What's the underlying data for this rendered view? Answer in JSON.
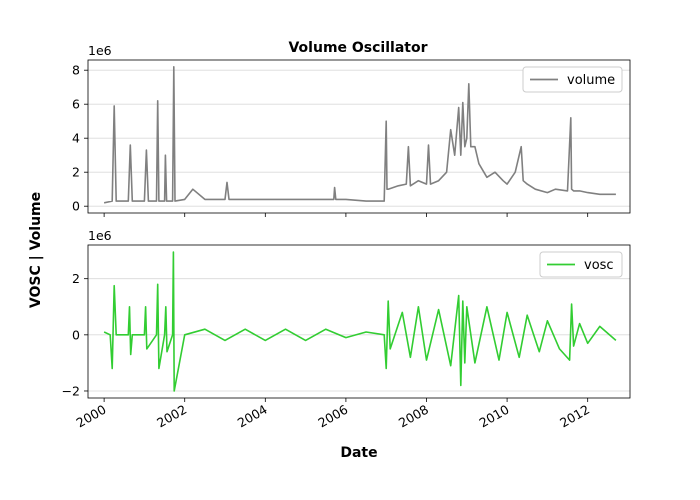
{
  "chart_data": {
    "type": "line",
    "title": "Volume Oscillator",
    "xlabel": "Date",
    "ylabel": "VOSC | Volume",
    "x_ticks": [
      "2000",
      "2002",
      "2004",
      "2006",
      "2008",
      "2010",
      "2012"
    ],
    "x_range": [
      1999.6,
      2013.05
    ],
    "grid": true,
    "panels": [
      {
        "name": "volume",
        "multiplier": "1e6",
        "ylim": [
          -0.4,
          8.6
        ],
        "y_ticks": [
          0,
          2,
          4,
          6,
          8
        ],
        "legend": "top-right",
        "series": [
          {
            "name": "volume",
            "color": "#808080",
            "x": [
              2000.0,
              2000.2,
              2000.25,
              2000.3,
              2000.6,
              2000.65,
              2000.7,
              2001.0,
              2001.05,
              2001.1,
              2001.3,
              2001.33,
              2001.36,
              2001.5,
              2001.52,
              2001.55,
              2001.7,
              2001.73,
              2001.76,
              2002.0,
              2002.2,
              2002.5,
              2003.0,
              2003.05,
              2003.1,
              2003.5,
              2004.0,
              2004.5,
              2005.0,
              2005.5,
              2005.7,
              2005.72,
              2005.75,
              2006.0,
              2006.5,
              2006.95,
              2007.0,
              2007.02,
              2007.05,
              2007.3,
              2007.5,
              2007.55,
              2007.6,
              2007.8,
              2008.0,
              2008.05,
              2008.1,
              2008.3,
              2008.5,
              2008.6,
              2008.7,
              2008.8,
              2008.85,
              2008.9,
              2008.95,
              2009.0,
              2009.05,
              2009.1,
              2009.2,
              2009.3,
              2009.5,
              2009.7,
              2009.9,
              2010.0,
              2010.2,
              2010.35,
              2010.4,
              2010.5,
              2010.7,
              2011.0,
              2011.2,
              2011.5,
              2011.58,
              2011.6,
              2011.65,
              2011.8,
              2012.0,
              2012.3,
              2012.7
            ],
            "values": [
              0.2,
              0.3,
              5.9,
              0.3,
              0.3,
              3.6,
              0.3,
              0.3,
              3.3,
              0.3,
              0.3,
              6.2,
              0.3,
              0.3,
              3.0,
              0.3,
              0.3,
              8.2,
              0.3,
              0.4,
              1.0,
              0.4,
              0.4,
              1.4,
              0.4,
              0.4,
              0.4,
              0.4,
              0.4,
              0.4,
              0.4,
              1.1,
              0.4,
              0.4,
              0.3,
              0.3,
              5.0,
              1.0,
              1.0,
              1.2,
              1.3,
              3.5,
              1.2,
              1.5,
              1.3,
              3.6,
              1.3,
              1.5,
              2.0,
              4.5,
              3.0,
              5.8,
              3.0,
              6.1,
              3.5,
              4.0,
              7.2,
              3.5,
              3.5,
              2.5,
              1.7,
              2.0,
              1.5,
              1.3,
              2.0,
              3.5,
              1.5,
              1.3,
              1.0,
              0.8,
              1.0,
              0.9,
              5.2,
              1.0,
              0.9,
              0.9,
              0.8,
              0.7,
              0.7
            ]
          }
        ]
      },
      {
        "name": "vosc",
        "multiplier": "1e6",
        "ylim": [
          -2.25,
          3.2
        ],
        "y_ticks": [
          -2,
          0,
          2
        ],
        "legend": "top-right",
        "series": [
          {
            "name": "vosc",
            "color": "#32cd32",
            "x": [
              2000.0,
              2000.15,
              2000.2,
              2000.25,
              2000.3,
              2000.6,
              2000.63,
              2000.66,
              2000.7,
              2001.0,
              2001.03,
              2001.06,
              2001.3,
              2001.33,
              2001.36,
              2001.5,
              2001.53,
              2001.56,
              2001.7,
              2001.72,
              2001.74,
              2002.0,
              2002.5,
              2003.0,
              2003.5,
              2004.0,
              2004.5,
              2005.0,
              2005.5,
              2006.0,
              2006.5,
              2006.95,
              2007.0,
              2007.05,
              2007.1,
              2007.4,
              2007.6,
              2007.8,
              2008.0,
              2008.3,
              2008.6,
              2008.8,
              2008.85,
              2008.9,
              2008.95,
              2009.0,
              2009.2,
              2009.5,
              2009.8,
              2010.0,
              2010.3,
              2010.5,
              2010.8,
              2011.0,
              2011.3,
              2011.55,
              2011.6,
              2011.65,
              2011.8,
              2012.0,
              2012.3,
              2012.7
            ],
            "values": [
              0.1,
              0.0,
              -1.2,
              1.75,
              0.0,
              0.0,
              1.0,
              -0.7,
              0.0,
              0.0,
              1.0,
              -0.5,
              0.0,
              1.8,
              -1.2,
              0.0,
              1.0,
              -0.6,
              0.0,
              2.95,
              -2.0,
              0.0,
              0.2,
              -0.2,
              0.2,
              -0.2,
              0.2,
              -0.2,
              0.2,
              -0.1,
              0.1,
              0.0,
              -1.2,
              1.2,
              -0.5,
              0.8,
              -0.8,
              1.0,
              -0.9,
              0.9,
              -1.1,
              1.4,
              -1.8,
              1.2,
              -1.0,
              1.0,
              -1.0,
              1.0,
              -0.9,
              0.8,
              -0.8,
              0.7,
              -0.6,
              0.5,
              -0.5,
              -0.9,
              1.1,
              -0.4,
              0.4,
              -0.3,
              0.3,
              -0.2
            ]
          }
        ]
      }
    ]
  }
}
